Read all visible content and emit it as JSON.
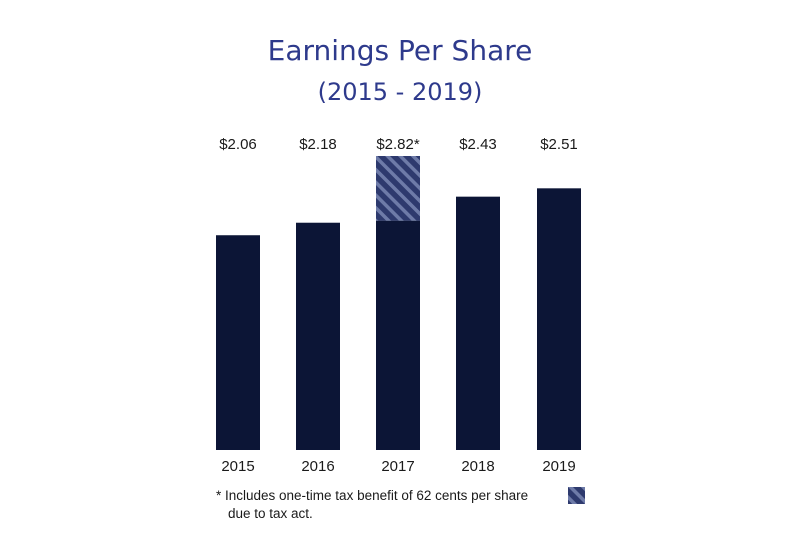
{
  "chart_data": {
    "type": "bar",
    "title": "Earnings Per Share",
    "subtitle": "(2015 - 2019)",
    "categories": [
      "2015",
      "2016",
      "2017",
      "2018",
      "2019"
    ],
    "values": [
      2.06,
      2.18,
      2.82,
      2.43,
      2.51
    ],
    "value_labels": [
      "$2.06",
      "$2.18",
      "$2.82*",
      "$2.43",
      "$2.51"
    ],
    "one_time_benefit_2017": 0.62,
    "xlabel": "",
    "ylabel": "",
    "ylim": [
      0,
      2.82
    ],
    "grid": false,
    "colors": {
      "bar": "#0c1536",
      "hatch_background": "#2e3a6e",
      "hatch_stripe": "#6e7ba8",
      "title": "#2e3a8c"
    }
  },
  "footnote": {
    "line1": "* Includes one-time tax benefit of 62 cents per share",
    "line2": "due to tax act."
  }
}
